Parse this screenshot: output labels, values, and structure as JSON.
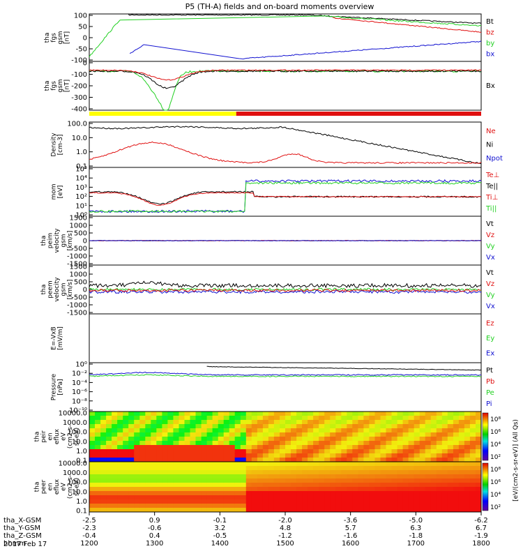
{
  "title": "P5 (TH-A) fields and on-board moments overview",
  "date": "2017 Feb 17",
  "colors": {
    "black": "#000000",
    "red": "#e01010",
    "green": "#20d020",
    "blue": "#1010d0",
    "yellow": "#ffff00"
  },
  "bars": {
    "yellow_until": 0.375
  },
  "chart_data": [
    {
      "type": "line",
      "id": "p1",
      "ylabel": [
        "tha",
        "fgs",
        "gsm",
        "[nT]"
      ],
      "ylim": [
        -100,
        100
      ],
      "yticks": [
        "100",
        "50",
        "0",
        "-50",
        "-100"
      ],
      "legend": [
        {
          "label": "Bt",
          "color": "black"
        },
        {
          "label": "bz",
          "color": "red"
        },
        {
          "label": "by",
          "color": "green"
        },
        {
          "label": "bx",
          "color": "blue"
        }
      ]
    },
    {
      "type": "line",
      "id": "p2",
      "ylabel": [
        "tha",
        "fgs",
        "gsm",
        "[nT]"
      ],
      "ylim": [
        -450,
        20
      ],
      "yticks": [
        "0",
        "-100",
        "-200",
        "-300",
        "-400"
      ],
      "legend": [
        {
          "label": "Bx",
          "color": "black"
        }
      ]
    },
    {
      "type": "line",
      "id": "p3",
      "ylabel": [
        "Density",
        "[cm-3]"
      ],
      "scale": "log",
      "yticks": [
        "100.0",
        "10.0",
        "1.0",
        "0.1"
      ],
      "legend": [
        {
          "label": "Ne",
          "color": "red"
        },
        {
          "label": "Ni",
          "color": "black"
        },
        {
          "label": "Npot",
          "color": "blue"
        }
      ]
    },
    {
      "type": "line",
      "id": "p4",
      "ylabel": [
        "mom",
        "[eV]"
      ],
      "scale": "log",
      "yticks": [
        "10⁵",
        "10⁴",
        "10³",
        "10²",
        "10¹",
        "10⁰"
      ],
      "legend": [
        {
          "label": "Te⊥",
          "color": "red"
        },
        {
          "label": "Te||",
          "color": "black"
        },
        {
          "label": "Ti⊥",
          "color": "red"
        },
        {
          "label": "Ti||",
          "color": "green"
        }
      ]
    },
    {
      "type": "line",
      "id": "p5",
      "ylabel": [
        "tha",
        "peim",
        "velocity",
        "gsm",
        "[km/s]"
      ],
      "ylim": [
        -1500,
        1500
      ],
      "yticks": [
        "1500",
        "1000",
        "500",
        "0",
        "-500",
        "-1000",
        "-1500"
      ],
      "legend": [
        {
          "label": "Vt",
          "color": "black"
        },
        {
          "label": "Vz",
          "color": "red"
        },
        {
          "label": "Vy",
          "color": "green"
        },
        {
          "label": "Vx",
          "color": "blue"
        }
      ]
    },
    {
      "type": "line",
      "id": "p6",
      "ylabel": [
        "tha",
        "peem",
        "velocity",
        "gsm",
        "[km/s]"
      ],
      "ylim": [
        -1500,
        1500
      ],
      "yticks": [
        "1500",
        "1000",
        "500",
        "0",
        "-500",
        "-1000",
        "-1500"
      ],
      "legend": [
        {
          "label": "Vt",
          "color": "black"
        },
        {
          "label": "Vz",
          "color": "red"
        },
        {
          "label": "Vy",
          "color": "green"
        },
        {
          "label": "Vx",
          "color": "blue"
        }
      ]
    },
    {
      "type": "line",
      "id": "p7",
      "ylabel": [
        "E=-VxB",
        "[mV/m]"
      ],
      "yticks": [],
      "legend": [
        {
          "label": "Ez",
          "color": "red"
        },
        {
          "label": "Ey",
          "color": "green"
        },
        {
          "label": "Ex",
          "color": "blue"
        }
      ]
    },
    {
      "type": "line",
      "id": "p8",
      "ylabel": [
        "Pressure",
        "[nPa]"
      ],
      "scale": "log",
      "yticks": [
        "10⁰",
        "10⁻²",
        "10⁻⁴",
        "10⁻⁶",
        "10⁻⁸",
        "10⁻¹⁰"
      ],
      "legend": [
        {
          "label": "Pt",
          "color": "black"
        },
        {
          "label": "Pb",
          "color": "red"
        },
        {
          "label": "Pe",
          "color": "green"
        },
        {
          "label": "Pi",
          "color": "blue"
        }
      ]
    },
    {
      "type": "heatmap",
      "id": "p9",
      "ylabel": [
        "tha",
        "peir",
        "en",
        "eflux",
        "eV",
        "(cm2-s-",
        "sr-eV)"
      ],
      "scale": "log",
      "yticks": [
        "10000.0",
        "1000.0",
        "100.0",
        "10.0",
        "1.0",
        "0.1"
      ]
    },
    {
      "type": "heatmap",
      "id": "p10",
      "ylabel": [
        "tha",
        "peer",
        "en",
        "eflux",
        "eV",
        "(cm2-s-",
        "sr-eV)"
      ],
      "scale": "log",
      "yticks": [
        "10000.0",
        "1000.0",
        "100.0",
        "10.0",
        "1.0",
        "0.1"
      ]
    }
  ],
  "colorbar": {
    "label": "[eV/(cm2-s-sr-eV)] (All Qs)",
    "upper_ticks": [
      "10⁸",
      "10⁶",
      "10⁴",
      "10²"
    ],
    "lower_ticks": [
      "10⁸",
      "10⁶",
      "10⁴",
      "10²"
    ]
  },
  "x_axis": {
    "rows": [
      {
        "label": "tha_X-GSM",
        "values": [
          "-2.5",
          "0.9",
          "-0.1",
          "-2.0",
          "-3.6",
          "-5.0",
          "-6.2"
        ]
      },
      {
        "label": "tha_Y-GSM",
        "values": [
          "-2.3",
          "-0.6",
          "3.2",
          "4.8",
          "5.7",
          "6.3",
          "6.7"
        ]
      },
      {
        "label": "tha_Z-GSM",
        "values": [
          "-0.4",
          "0.4",
          "-0.5",
          "-1.2",
          "-1.6",
          "-1.8",
          "-1.9"
        ]
      },
      {
        "label": "hhmm",
        "values": [
          "1200",
          "1300",
          "1400",
          "1500",
          "1600",
          "1700",
          "1800"
        ]
      }
    ]
  }
}
